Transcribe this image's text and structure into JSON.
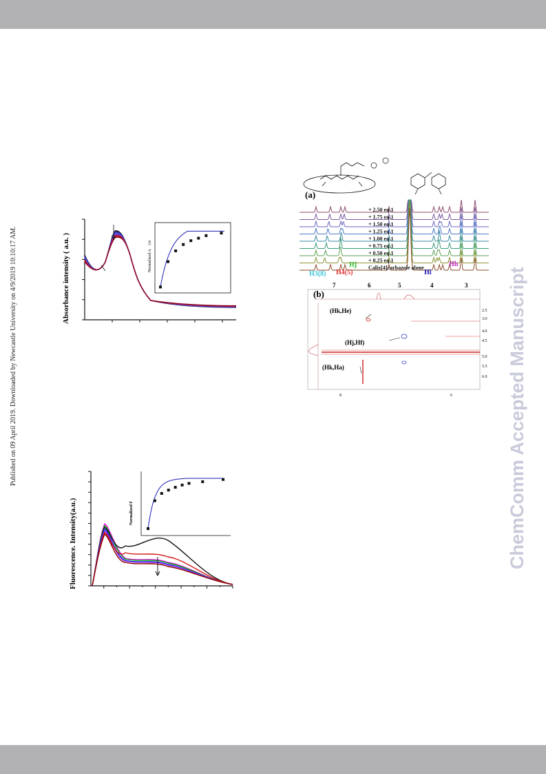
{
  "page": {
    "side_note": "Published on 09 April 2019. Downloaded by Newcastle University on 4/9/2019 10:10:17 AM.",
    "watermark": "ChemComm Accepted Manuscript"
  },
  "figure_absorbance": {
    "ylabel": "Absorbance intensity ( a.u. )",
    "inset_ylabel": "Normalized A",
    "inset_subscript": "330"
  },
  "figure_fluorescence": {
    "ylabel": "Fluorescence. Intensity(a.u.)",
    "inset_ylabel": "Normalized F"
  },
  "figure_nmr": {
    "panel_a": "(a)",
    "panel_b": "(b)",
    "equivalents": [
      "+ 2.50 eq.1",
      "+ 1.75 eq.1",
      "+ 1.50 eq.1",
      "+ 1.25 eq.1",
      "+ 1.00 eq.1",
      "+ 0.75 eq.1",
      "+ 0.50 eq.1",
      "+ 0.25 eq.1",
      "Calix[4]carbazole alone"
    ],
    "proton_labels": {
      "h3_8": "H3(8)",
      "h4_5": "H4(5)",
      "hj": "Hj",
      "hi": "Hi",
      "hh": "Hh"
    },
    "ppm_ticks": [
      "7",
      "6",
      "5",
      "4",
      "3"
    ],
    "cross_peaks": [
      "(Hk,He)",
      "(Hj,Hf)",
      "(Hk,Ha)"
    ],
    "f1_ticks": [
      "2.5",
      "3.0",
      "4.0",
      "4.5",
      "5.0",
      "5.5",
      "6.0"
    ],
    "f2_ticks": [
      "8",
      "6"
    ]
  },
  "chart_data": [
    {
      "type": "line",
      "description_of_marks": "UV-vis titration absorbance spectra (multiple overlaid series, decreasing along arrow)",
      "ylabel": "Absorbance intensity ( a.u. )",
      "inset": {
        "type": "scatter",
        "ylabel": "Normalized A330",
        "x": [
          0,
          1,
          2,
          3,
          4,
          5,
          6,
          8
        ],
        "y": [
          0.05,
          0.45,
          0.62,
          0.72,
          0.78,
          0.82,
          0.86,
          0.9
        ]
      }
    },
    {
      "type": "line",
      "ylabel": "Fluorescence. Intensity(a.u.)",
      "inset": {
        "type": "scatter",
        "ylabel": "Normalized F",
        "x": [
          0,
          1,
          2,
          3,
          4,
          5,
          6,
          8,
          11
        ],
        "y": [
          0.05,
          0.55,
          0.68,
          0.74,
          0.79,
          0.83,
          0.86,
          0.89,
          0.93
        ]
      }
    }
  ]
}
